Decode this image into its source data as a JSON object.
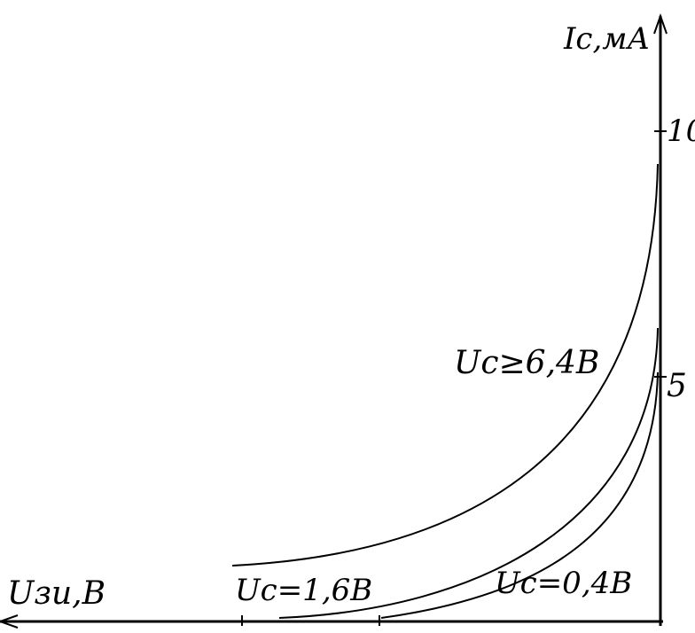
{
  "y_axis": {
    "label": "Iс,мА",
    "ticks": [
      "10",
      "5"
    ]
  },
  "x_axis": {
    "label": "Uзи,В"
  },
  "curves": [
    {
      "label": "Uс≥6,4В"
    },
    {
      "label": "Uс=1,6В"
    },
    {
      "label": "Uс=0,4В"
    }
  ]
}
